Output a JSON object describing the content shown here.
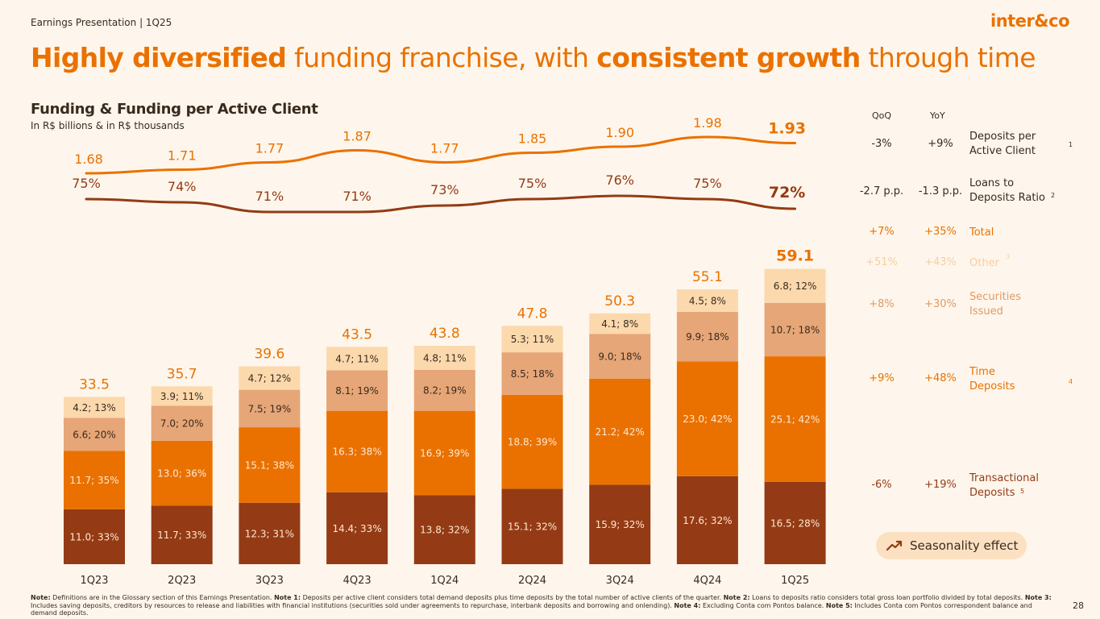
{
  "header": {
    "label": "Earnings Presentation | 1Q25",
    "logo": "inter&co"
  },
  "title": {
    "bold1": "Highly diversified",
    "mid": " funding franchise, with ",
    "bold2": "consistent growth",
    "end": " through time"
  },
  "colors": {
    "accent": "#ea7100",
    "transactional": "#943b15",
    "time": "#ea7100",
    "securities": "#e6a677",
    "other": "#fbd9ad",
    "dark": "#3a2a1e",
    "background": "#fef6ec"
  },
  "chart_data": {
    "type": "bar",
    "title": "Funding & Funding per Active Client",
    "subtitle": "In R$ billions & in R$ thousands",
    "categories": [
      "1Q23",
      "2Q23",
      "3Q23",
      "4Q23",
      "1Q24",
      "2Q24",
      "3Q24",
      "4Q24",
      "1Q25"
    ],
    "stacked": true,
    "ylim": [
      0,
      65
    ],
    "series": [
      {
        "name": "Transactional Deposits",
        "values": [
          11.0,
          11.7,
          12.3,
          14.4,
          13.8,
          15.1,
          15.9,
          17.6,
          16.5
        ],
        "labels": [
          "11.0; 33%",
          "11.7; 33%",
          "12.3; 31%",
          "14.4; 33%",
          "13.8; 32%",
          "15.1; 32%",
          "15.9; 32%",
          "17.6; 32%",
          "16.5; 28%"
        ]
      },
      {
        "name": "Time Deposits",
        "values": [
          11.7,
          13.0,
          15.1,
          16.3,
          16.9,
          18.8,
          21.2,
          23.0,
          25.1
        ],
        "labels": [
          "11.7; 35%",
          "13.0; 36%",
          "15.1; 38%",
          "16.3; 38%",
          "16.9; 39%",
          "18.8; 39%",
          "21.2; 42%",
          "23.0; 42%",
          "25.1; 42%"
        ]
      },
      {
        "name": "Securities Issued",
        "values": [
          6.6,
          7.0,
          7.5,
          8.1,
          8.2,
          8.5,
          9.0,
          9.9,
          10.7
        ],
        "labels": [
          "6.6; 20%",
          "7.0; 20%",
          "7.5; 19%",
          "8.1; 19%",
          "8.2; 19%",
          "8.5; 18%",
          "9.0; 18%",
          "9.9; 18%",
          "10.7; 18%"
        ]
      },
      {
        "name": "Other",
        "values": [
          4.2,
          3.9,
          4.7,
          4.7,
          4.8,
          5.3,
          4.1,
          4.5,
          6.8
        ],
        "labels": [
          "4.2; 13%",
          "3.9; 11%",
          "4.7; 12%",
          "4.7; 11%",
          "4.8; 11%",
          "5.3; 11%",
          "4.1; 8%",
          "4.5; 8%",
          "6.8; 12%"
        ]
      }
    ],
    "totals": [
      "33.5",
      "35.7",
      "39.6",
      "43.5",
      "43.8",
      "47.8",
      "50.3",
      "55.1",
      "59.1"
    ],
    "lines": [
      {
        "name": "Deposits per Active Client",
        "values": [
          1.68,
          1.71,
          1.77,
          1.87,
          1.77,
          1.85,
          1.9,
          1.98,
          1.93
        ],
        "labels": [
          "1.68",
          "1.71",
          "1.77",
          "1.87",
          "1.77",
          "1.85",
          "1.90",
          "1.98",
          "1.93"
        ]
      },
      {
        "name": "Loans to Deposits Ratio",
        "values": [
          75,
          74,
          71,
          71,
          73,
          75,
          76,
          75,
          72
        ],
        "labels": [
          "75%",
          "74%",
          "71%",
          "71%",
          "73%",
          "75%",
          "76%",
          "75%",
          "72%"
        ]
      }
    ]
  },
  "side": {
    "qoq_header": "QoQ",
    "yoy_header": "YoY",
    "rows": [
      {
        "qoq": "-3%",
        "yoy": "+9%",
        "label": "Deposits per Active Client",
        "sup": "1"
      },
      {
        "qoq": "-2.7 p.p.",
        "yoy": "-1.3 p.p.",
        "label": "Loans to Deposits Ratio",
        "sup": "2"
      },
      {
        "qoq": "+7%",
        "yoy": "+35%",
        "label": "Total",
        "sup": ""
      },
      {
        "qoq": "+51%",
        "yoy": "+43%",
        "label": "Other",
        "sup": "3"
      },
      {
        "qoq": "+8%",
        "yoy": "+30%",
        "label": "Securities Issued",
        "sup": ""
      },
      {
        "qoq": "+9%",
        "yoy": "+48%",
        "label": "Time Deposits",
        "sup": "4"
      },
      {
        "qoq": "-6%",
        "yoy": "+19%",
        "label": "Transactional Deposits",
        "sup": "5"
      }
    ]
  },
  "pill": {
    "label": "Seasonality effect",
    "icon": "trend-up-icon"
  },
  "note": {
    "t0": "Note:",
    "t1": " Definitions are in the Glossary section of this Earnings Presentation. ",
    "t2": "Note 1:",
    "t3": " Deposits per active client considers total demand deposits plus time deposits by the total number of active clients of the quarter. ",
    "t4": "Note 2:",
    "t5": " Loans to deposits ratio considers total gross loan portfolio divided by total deposits. ",
    "t6": "Note 3:",
    "t7": " Includes saving deposits, creditors by resources to release and liabilities with financial institutions (securities sold under agreements to repurchase, interbank deposits and borrowing and onlending). ",
    "t8": "Note 4:",
    "t9": " Excluding Conta com Pontos balance. ",
    "t10": "Note 5:",
    "t11": " Includes Conta com Pontos correspondent balance and demand deposits."
  },
  "page_number": "28"
}
